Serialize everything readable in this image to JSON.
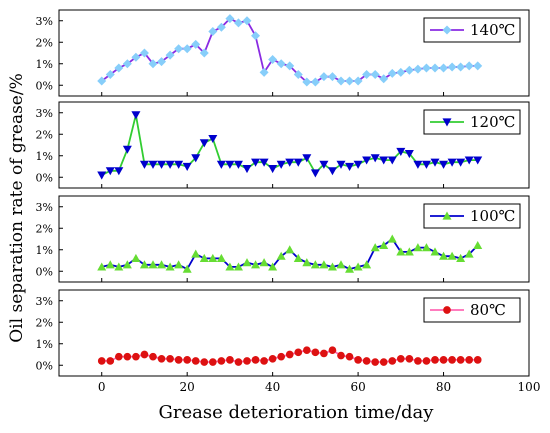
{
  "chart_data": {
    "type": "line",
    "title": "",
    "xlabel": "Grease deterioration time/day",
    "ylabel": "Oil separation rate of grease/%",
    "x_ticks": [
      "0",
      "20",
      "40",
      "60",
      "80",
      "100"
    ],
    "xlim": [
      -10,
      100
    ],
    "ylim": [
      -0.5,
      3.5
    ],
    "y_ticks": [
      "0%",
      "1%",
      "2%",
      "3%"
    ],
    "grid": false,
    "panels": [
      {
        "legend": "140℃",
        "line_color": "#8a2be2",
        "marker_color": "#87cefa",
        "marker": "diamond",
        "x": [
          0,
          2,
          4,
          6,
          8,
          10,
          12,
          14,
          16,
          18,
          20,
          22,
          24,
          26,
          28,
          30,
          32,
          34,
          36,
          38,
          40,
          42,
          44,
          46,
          48,
          50,
          52,
          54,
          56,
          58,
          60,
          62,
          64,
          66,
          68,
          70,
          72,
          74,
          76,
          78,
          80,
          82,
          84,
          86,
          88
        ],
        "y": [
          0.2,
          0.5,
          0.8,
          1.0,
          1.3,
          1.5,
          1.0,
          1.1,
          1.4,
          1.7,
          1.7,
          1.9,
          1.5,
          2.5,
          2.7,
          3.1,
          2.9,
          3.0,
          2.3,
          0.6,
          1.2,
          1.0,
          0.9,
          0.5,
          0.15,
          0.15,
          0.4,
          0.4,
          0.2,
          0.2,
          0.2,
          0.5,
          0.5,
          0.3,
          0.55,
          0.6,
          0.7,
          0.75,
          0.8,
          0.8,
          0.8,
          0.85,
          0.85,
          0.9,
          0.9
        ]
      },
      {
        "legend": "120℃",
        "line_color": "#32cd32",
        "marker_color": "#0000cd",
        "marker": "triangle-down",
        "x": [
          0,
          2,
          4,
          6,
          8,
          10,
          12,
          14,
          16,
          18,
          20,
          22,
          24,
          26,
          28,
          30,
          32,
          34,
          36,
          38,
          40,
          42,
          44,
          46,
          48,
          50,
          52,
          54,
          56,
          58,
          60,
          62,
          64,
          66,
          68,
          70,
          72,
          74,
          76,
          78,
          80,
          82,
          84,
          86,
          88
        ],
        "y": [
          0.1,
          0.3,
          0.3,
          1.3,
          2.9,
          0.6,
          0.6,
          0.6,
          0.6,
          0.6,
          0.5,
          0.9,
          1.6,
          1.8,
          0.6,
          0.6,
          0.6,
          0.4,
          0.7,
          0.7,
          0.4,
          0.6,
          0.7,
          0.7,
          0.9,
          0.2,
          0.6,
          0.3,
          0.6,
          0.5,
          0.6,
          0.8,
          0.9,
          0.8,
          0.8,
          1.2,
          1.1,
          0.6,
          0.6,
          0.7,
          0.6,
          0.7,
          0.7,
          0.8,
          0.8
        ]
      },
      {
        "legend": "100℃",
        "line_color": "#0000cd",
        "marker_color": "#66dd33",
        "marker": "triangle-up",
        "x": [
          0,
          2,
          4,
          6,
          8,
          10,
          12,
          14,
          16,
          18,
          20,
          22,
          24,
          26,
          28,
          30,
          32,
          34,
          36,
          38,
          40,
          42,
          44,
          46,
          48,
          50,
          52,
          54,
          56,
          58,
          60,
          62,
          64,
          66,
          68,
          70,
          72,
          74,
          76,
          78,
          80,
          82,
          84,
          86,
          88
        ],
        "y": [
          0.2,
          0.3,
          0.2,
          0.3,
          0.6,
          0.3,
          0.3,
          0.3,
          0.2,
          0.3,
          0.1,
          0.8,
          0.6,
          0.6,
          0.6,
          0.2,
          0.2,
          0.4,
          0.3,
          0.4,
          0.2,
          0.7,
          1.0,
          0.6,
          0.4,
          0.3,
          0.3,
          0.2,
          0.3,
          0.1,
          0.2,
          0.3,
          1.1,
          1.2,
          1.5,
          0.9,
          0.9,
          1.1,
          1.1,
          0.9,
          0.7,
          0.7,
          0.6,
          0.8,
          1.2
        ]
      },
      {
        "legend": "80℃",
        "line_color": "#ff69b4",
        "marker_color": "#dd1111",
        "marker": "circle",
        "x": [
          0,
          2,
          4,
          6,
          8,
          10,
          12,
          14,
          16,
          18,
          20,
          22,
          24,
          26,
          28,
          30,
          32,
          34,
          36,
          38,
          40,
          42,
          44,
          46,
          48,
          50,
          52,
          54,
          56,
          58,
          60,
          62,
          64,
          66,
          68,
          70,
          72,
          74,
          76,
          78,
          80,
          82,
          84,
          86,
          88
        ],
        "y": [
          0.2,
          0.2,
          0.4,
          0.4,
          0.4,
          0.5,
          0.4,
          0.3,
          0.3,
          0.25,
          0.25,
          0.2,
          0.15,
          0.15,
          0.2,
          0.25,
          0.15,
          0.2,
          0.25,
          0.2,
          0.3,
          0.4,
          0.5,
          0.6,
          0.7,
          0.6,
          0.55,
          0.7,
          0.45,
          0.4,
          0.25,
          0.2,
          0.15,
          0.15,
          0.2,
          0.3,
          0.3,
          0.2,
          0.2,
          0.25,
          0.25,
          0.25,
          0.25,
          0.25,
          0.25
        ]
      }
    ]
  }
}
